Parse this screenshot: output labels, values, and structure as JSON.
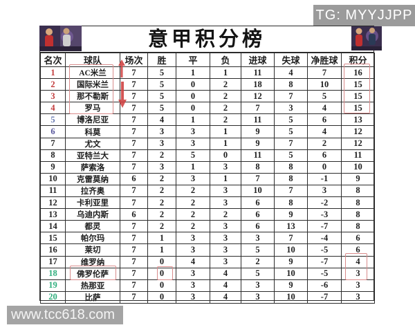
{
  "page": {
    "tg_watermark": "TG: MYYJJPP",
    "site_watermark": "www.tcc618.com"
  },
  "title": "意甲积分榜",
  "chart_data": {
    "type": "table",
    "title": "意甲积分榜",
    "columns": [
      "名次",
      "球队",
      "场次",
      "胜",
      "平",
      "负",
      "进球",
      "失球",
      "净胜球",
      "积分"
    ],
    "rows": [
      [
        "1",
        "AC米兰",
        "7",
        "5",
        "1",
        "1",
        "11",
        "4",
        "7",
        "16"
      ],
      [
        "2",
        "国际米兰",
        "7",
        "5",
        "0",
        "2",
        "18",
        "8",
        "10",
        "15"
      ],
      [
        "3",
        "那不勒斯",
        "7",
        "5",
        "0",
        "2",
        "12",
        "7",
        "5",
        "15"
      ],
      [
        "4",
        "罗马",
        "7",
        "5",
        "0",
        "2",
        "7",
        "3",
        "4",
        "15"
      ],
      [
        "5",
        "博洛尼亚",
        "7",
        "4",
        "1",
        "2",
        "11",
        "5",
        "6",
        "13"
      ],
      [
        "6",
        "科莫",
        "7",
        "3",
        "3",
        "1",
        "9",
        "5",
        "4",
        "12"
      ],
      [
        "7",
        "尤文",
        "7",
        "3",
        "3",
        "1",
        "9",
        "7",
        "2",
        "12"
      ],
      [
        "8",
        "亚特兰大",
        "7",
        "2",
        "5",
        "0",
        "11",
        "5",
        "6",
        "11"
      ],
      [
        "9",
        "萨索洛",
        "7",
        "3",
        "1",
        "3",
        "8",
        "8",
        "0",
        "10"
      ],
      [
        "10",
        "克雷莫纳",
        "6",
        "2",
        "3",
        "1",
        "7",
        "8",
        "-1",
        "9"
      ],
      [
        "11",
        "拉齐奥",
        "7",
        "2",
        "2",
        "3",
        "10",
        "7",
        "3",
        "8"
      ],
      [
        "12",
        "卡利亚里",
        "7",
        "2",
        "2",
        "3",
        "6",
        "8",
        "-2",
        "8"
      ],
      [
        "13",
        "乌迪内斯",
        "6",
        "2",
        "2",
        "2",
        "6",
        "9",
        "-3",
        "8"
      ],
      [
        "14",
        "都灵",
        "7",
        "2",
        "2",
        "3",
        "6",
        "13",
        "-7",
        "8"
      ],
      [
        "15",
        "帕尔玛",
        "7",
        "1",
        "3",
        "3",
        "3",
        "7",
        "-4",
        "6"
      ],
      [
        "16",
        "莱切",
        "7",
        "1",
        "3",
        "3",
        "5",
        "10",
        "-5",
        "6"
      ],
      [
        "17",
        "维罗纳",
        "7",
        "0",
        "4",
        "3",
        "2",
        "9",
        "-7",
        "4"
      ],
      [
        "18",
        "佛罗伦萨",
        "7",
        "0",
        "3",
        "4",
        "5",
        "10",
        "-5",
        "3"
      ],
      [
        "19",
        "热那亚",
        "7",
        "0",
        "3",
        "4",
        "3",
        "9",
        "-6",
        "3"
      ],
      [
        "20",
        "比萨",
        "7",
        "0",
        "3",
        "4",
        "3",
        "10",
        "-7",
        "3"
      ]
    ],
    "rank_colors": [
      "#c23b3b",
      "#c23b3b",
      "#c23b3b",
      "#c23b3b",
      "#6678b0",
      "#55549a",
      "#222222",
      "#222222",
      "#222222",
      "#222222",
      "#222222",
      "#222222",
      "#222222",
      "#222222",
      "#222222",
      "#222222",
      "#222222",
      "#2fae7d",
      "#2fae7d",
      "#2fae7d"
    ],
    "annotations": {
      "highlight_color": "#d98b8b",
      "arrow_color": "#cf4444",
      "team_box_rows": "1-4",
      "points_box_rows_top": "1-4",
      "team_box_row_18": "佛罗伦萨",
      "win_box_row_18": "0",
      "points_box_rows_bottom": "17-18",
      "up_arrow_row": "1",
      "down_arrow_rows": "2-3"
    },
    "layout": {
      "grid": "on",
      "header_position": "top"
    }
  }
}
